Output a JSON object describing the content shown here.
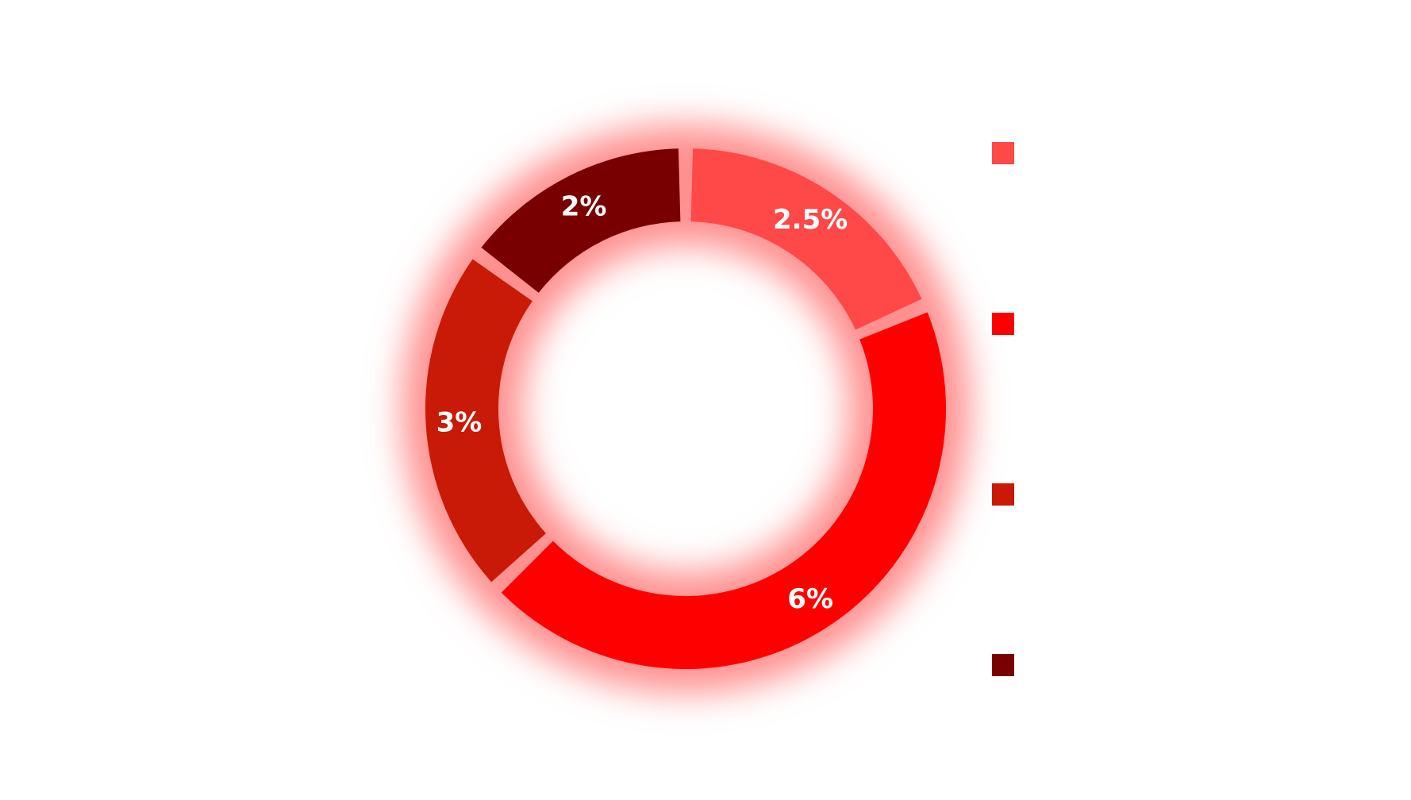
{
  "chart_data": {
    "type": "pie",
    "subtype": "donut",
    "slices": [
      {
        "label": "",
        "value": 2.5,
        "value_label": "2.5%",
        "color": "#ff4848"
      },
      {
        "label": "",
        "value": 6,
        "value_label": "6%",
        "color": "#ff0000"
      },
      {
        "label": "",
        "value": 3,
        "value_label": "3%",
        "color": "#c81a06"
      },
      {
        "label": "",
        "value": 2,
        "value_label": "2%",
        "color": "#780000"
      }
    ],
    "center_text": "",
    "legend_position": "right",
    "glow_color": "#ff9090"
  }
}
